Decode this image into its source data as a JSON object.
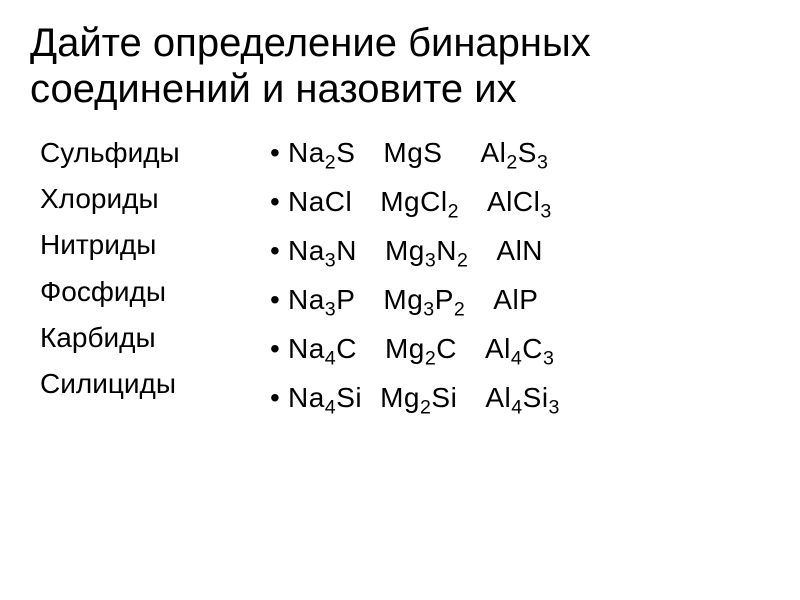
{
  "title_line1": "Дайте определение бинарных",
  "title_line2": "соединений и назовите их",
  "categories": [
    "Сульфиды",
    "Хлориды",
    "Нитриды",
    "Фосфиды",
    "Карбиды",
    "Силициды"
  ],
  "bullet": "•",
  "formulas": [
    [
      {
        "parts": [
          {
            "t": "Na"
          },
          {
            "t": "2",
            "sub": true
          },
          {
            "t": "S"
          }
        ]
      },
      {
        "parts": [
          {
            "t": "MgS"
          }
        ]
      },
      {
        "parts": [
          {
            "t": "Al"
          },
          {
            "t": "2",
            "sub": true
          },
          {
            "t": "S"
          },
          {
            "t": "3",
            "sub": true
          }
        ]
      }
    ],
    [
      {
        "parts": [
          {
            "t": "NaCl"
          }
        ]
      },
      {
        "parts": [
          {
            "t": "MgCl"
          },
          {
            "t": "2",
            "sub": true
          }
        ]
      },
      {
        "parts": [
          {
            "t": "AlCl"
          },
          {
            "t": "3",
            "sub": true
          }
        ]
      }
    ],
    [
      {
        "parts": [
          {
            "t": "Na"
          },
          {
            "t": "3",
            "sub": true
          },
          {
            "t": "N"
          }
        ]
      },
      {
        "parts": [
          {
            "t": "Mg"
          },
          {
            "t": "3",
            "sub": true
          },
          {
            "t": "N"
          },
          {
            "t": "2",
            "sub": true
          }
        ]
      },
      {
        "parts": [
          {
            "t": "AlN"
          }
        ]
      }
    ],
    [
      {
        "parts": [
          {
            "t": "Na"
          },
          {
            "t": "3",
            "sub": true
          },
          {
            "t": "P"
          }
        ]
      },
      {
        "parts": [
          {
            "t": "Mg"
          },
          {
            "t": "3",
            "sub": true
          },
          {
            "t": "P"
          },
          {
            "t": "2",
            "sub": true
          }
        ]
      },
      {
        "parts": [
          {
            "t": "AlP"
          }
        ]
      }
    ],
    [
      {
        "parts": [
          {
            "t": "Na"
          },
          {
            "t": "4",
            "sub": true
          },
          {
            "t": "C"
          }
        ]
      },
      {
        "parts": [
          {
            "t": "Mg"
          },
          {
            "t": "2",
            "sub": true
          },
          {
            "t": "C"
          }
        ]
      },
      {
        "parts": [
          {
            "t": "Al"
          },
          {
            "t": "4",
            "sub": true
          },
          {
            "t": "C"
          },
          {
            "t": "3",
            "sub": true
          }
        ]
      }
    ],
    [
      {
        "parts": [
          {
            "t": "Na"
          },
          {
            "t": "4",
            "sub": true
          },
          {
            "t": "Si"
          }
        ]
      },
      {
        "parts": [
          {
            "t": "Mg"
          },
          {
            "t": "2",
            "sub": true
          },
          {
            "t": "Si"
          }
        ]
      },
      {
        "parts": [
          {
            "t": "Al"
          },
          {
            "t": "4",
            "sub": true
          },
          {
            "t": "Si"
          },
          {
            "t": "3",
            "sub": true
          }
        ]
      }
    ]
  ],
  "row_spacings": [
    [
      "sp-md",
      "sp-lg"
    ],
    [
      "sp-md",
      "sp-md"
    ],
    [
      "sp-md",
      "sp-md"
    ],
    [
      "sp-md",
      "sp-md"
    ],
    [
      "sp-md",
      "sp-md"
    ],
    [
      "sp-sm",
      "sp-md"
    ]
  ],
  "colors": {
    "background": "#ffffff",
    "text": "#000000"
  },
  "typography": {
    "title_fontsize": 40,
    "body_fontsize": 28,
    "font_family": "Arial"
  }
}
